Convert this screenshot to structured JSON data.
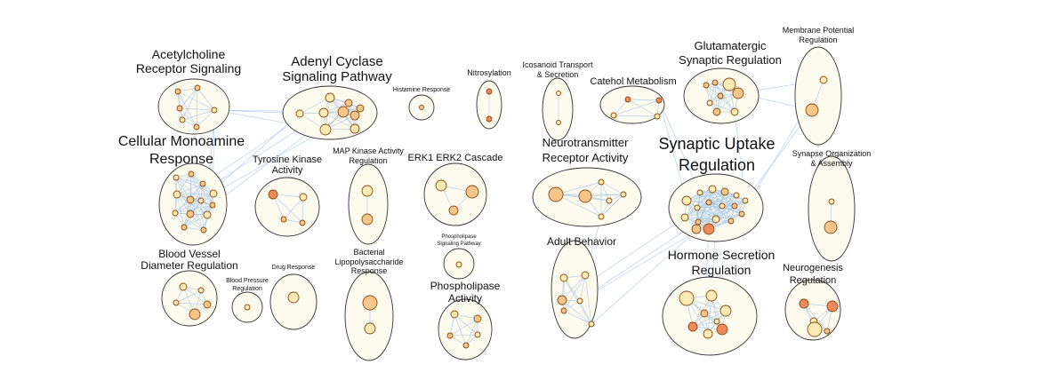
{
  "colors": {
    "cluster_fill": "#fdfaee",
    "cluster_stroke": "#333333",
    "edge": "#a8c8e8",
    "node_light": "#fdebb5",
    "node_mid": "#f6c58a",
    "node_dark": "#ee8a5c"
  },
  "clusters": [
    {
      "id": "acetylcholine",
      "label": [
        "Acetylcholine",
        "Receptor Signaling"
      ]
    },
    {
      "id": "adenyl",
      "label": [
        "Adenyl Cyclase",
        "Signaling Pathway"
      ]
    },
    {
      "id": "histamine",
      "label": [
        "Histamine Response"
      ]
    },
    {
      "id": "nitrosylation",
      "label": [
        "Nitrosylation"
      ]
    },
    {
      "id": "icosanoid",
      "label": [
        "Icosanoid Transport",
        "& Secretion"
      ]
    },
    {
      "id": "catechol",
      "label": [
        "Catehol Metabolism"
      ]
    },
    {
      "id": "glutamatergic",
      "label": [
        "Glutamatergic",
        "Synaptic Regulation"
      ]
    },
    {
      "id": "membrane",
      "label": [
        "Membrane Potential",
        "Regulation"
      ]
    },
    {
      "id": "monoamine",
      "label": [
        "Cellular Monoamine",
        "Response"
      ]
    },
    {
      "id": "tyrosine",
      "label": [
        "Tyrosine Kinase",
        "Activity"
      ]
    },
    {
      "id": "mapk",
      "label": [
        "MAP Kinase Activity",
        "Regulation"
      ]
    },
    {
      "id": "erk",
      "label": [
        "ERK1  ERK2 Cascade"
      ]
    },
    {
      "id": "neurotransmitter",
      "label": [
        "Neurotransmitter",
        "Receptor Activity"
      ]
    },
    {
      "id": "synaptic_uptake",
      "label": [
        "Synaptic Uptake",
        "Regulation"
      ]
    },
    {
      "id": "synapse_org",
      "label": [
        "Synapse Organization",
        "& Assembly"
      ]
    },
    {
      "id": "phospholipase_sig",
      "label": [
        "Phospholipase",
        "Signaling Pathway"
      ]
    },
    {
      "id": "blood_vessel",
      "label": [
        "Blood Vessel",
        "Diameter Regulation"
      ]
    },
    {
      "id": "blood_pressure",
      "label": [
        "Blood Pressure",
        "Regulation"
      ]
    },
    {
      "id": "drug",
      "label": [
        "Drug Response"
      ]
    },
    {
      "id": "bacterial",
      "label": [
        "Bacterial",
        "Lipopolysaccharide",
        "Response"
      ]
    },
    {
      "id": "phospholipase_act",
      "label": [
        "Phospholipase",
        "Activity"
      ]
    },
    {
      "id": "adult",
      "label": [
        "Adult Behavior"
      ]
    },
    {
      "id": "hormone",
      "label": [
        "Hormone Secretion",
        "Regulation"
      ]
    },
    {
      "id": "neurogenesis",
      "label": [
        "Neurogenesis",
        "Regulation"
      ]
    }
  ]
}
